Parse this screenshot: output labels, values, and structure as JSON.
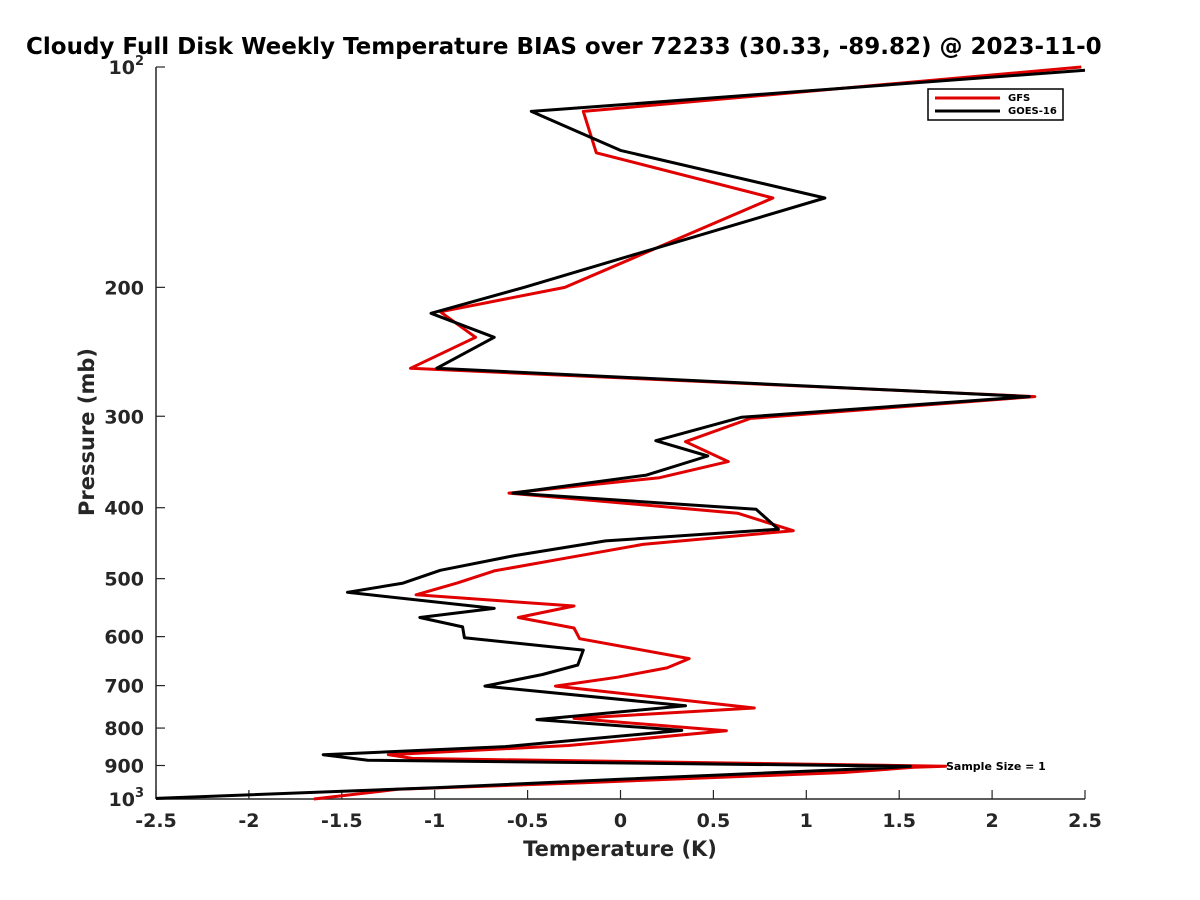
{
  "chart_data": {
    "type": "line",
    "title": "Cloudy Full Disk Weekly Temperature BIAS over 72233 (30.33, -89.82) @ 2023-11-0",
    "xlabel": "Temperature (K)",
    "ylabel": "Pressure (mb)",
    "xlim": [
      -2.5,
      2.5
    ],
    "ylim": [
      100,
      1000
    ],
    "y_scale": "log",
    "y_reversed": true,
    "x_ticks": [
      -2.5,
      -2,
      -1.5,
      -1,
      -0.5,
      0,
      0.5,
      1,
      1.5,
      2,
      2.5
    ],
    "x_tick_labels": [
      "-2.5",
      "-2",
      "-1.5",
      "-1",
      "-0.5",
      "0",
      "0.5",
      "1",
      "1.5",
      "2",
      "2.5"
    ],
    "y_ticks": [
      {
        "value": 100,
        "base": "10",
        "exp": "2"
      },
      {
        "value": 200,
        "label": "200"
      },
      {
        "value": 300,
        "label": "300"
      },
      {
        "value": 400,
        "label": "400"
      },
      {
        "value": 500,
        "label": "500"
      },
      {
        "value": 600,
        "label": "600"
      },
      {
        "value": 700,
        "label": "700"
      },
      {
        "value": 800,
        "label": "800"
      },
      {
        "value": 900,
        "label": "900"
      },
      {
        "value": 1000,
        "base": "10",
        "exp": "3"
      }
    ],
    "legend_position": "top-right",
    "annotation": "Sample Size = 1",
    "series": [
      {
        "name": "GFS",
        "color": "#e00000",
        "points": [
          [
            2.48,
            100
          ],
          [
            -0.2,
            115
          ],
          [
            -0.13,
            131
          ],
          [
            0.82,
            151
          ],
          [
            -0.3,
            200
          ],
          [
            -0.97,
            216
          ],
          [
            -0.78,
            234
          ],
          [
            -1.13,
            258
          ],
          [
            2.23,
            282
          ],
          [
            0.7,
            302
          ],
          [
            0.35,
            325
          ],
          [
            0.58,
            346
          ],
          [
            0.21,
            364
          ],
          [
            -0.6,
            382
          ],
          [
            0.63,
            407
          ],
          [
            0.93,
            430
          ],
          [
            0.12,
            449
          ],
          [
            -0.3,
            469
          ],
          [
            -0.68,
            488
          ],
          [
            -0.88,
            507
          ],
          [
            -1.1,
            526
          ],
          [
            -0.25,
            545
          ],
          [
            -0.55,
            565
          ],
          [
            -0.25,
            584
          ],
          [
            -0.22,
            604
          ],
          [
            0.37,
            643
          ],
          [
            0.25,
            662
          ],
          [
            -0.02,
            682
          ],
          [
            -0.35,
            701
          ],
          [
            0.72,
            751
          ],
          [
            -0.25,
            776
          ],
          [
            0.57,
            807
          ],
          [
            -0.28,
            845
          ],
          [
            -1.25,
            870
          ],
          [
            -1.12,
            880
          ],
          [
            1.75,
            902
          ],
          [
            1.58,
            905
          ],
          [
            1.2,
            920
          ],
          [
            -0.2,
            950
          ],
          [
            -1.2,
            970
          ],
          [
            -1.65,
            1000
          ]
        ]
      },
      {
        "name": "GOES-16",
        "color": "#000000",
        "points": [
          [
            2.5,
            101
          ],
          [
            -0.48,
            115
          ],
          [
            0.0,
            130
          ],
          [
            1.1,
            151
          ],
          [
            -0.52,
            200
          ],
          [
            -1.02,
            217
          ],
          [
            -0.68,
            234
          ],
          [
            -0.99,
            258
          ],
          [
            2.2,
            282
          ],
          [
            0.65,
            301
          ],
          [
            0.19,
            324
          ],
          [
            0.47,
            340
          ],
          [
            0.14,
            361
          ],
          [
            -0.58,
            382
          ],
          [
            0.73,
            402
          ],
          [
            0.85,
            428
          ],
          [
            -0.08,
            444
          ],
          [
            -0.57,
            465
          ],
          [
            -0.97,
            487
          ],
          [
            -1.17,
            507
          ],
          [
            -1.47,
            522
          ],
          [
            -0.68,
            549
          ],
          [
            -1.08,
            565
          ],
          [
            -0.85,
            582
          ],
          [
            -0.84,
            602
          ],
          [
            -0.2,
            626
          ],
          [
            -0.23,
            656
          ],
          [
            -0.42,
            676
          ],
          [
            -0.73,
            701
          ],
          [
            0.35,
            746
          ],
          [
            -0.45,
            779
          ],
          [
            0.33,
            806
          ],
          [
            -0.62,
            848
          ],
          [
            -1.6,
            870
          ],
          [
            -1.36,
            885
          ],
          [
            1.56,
            902
          ],
          [
            1.45,
            906
          ],
          [
            0.0,
            940
          ],
          [
            -1.0,
            965
          ],
          [
            -2.5,
            998
          ]
        ]
      }
    ]
  }
}
